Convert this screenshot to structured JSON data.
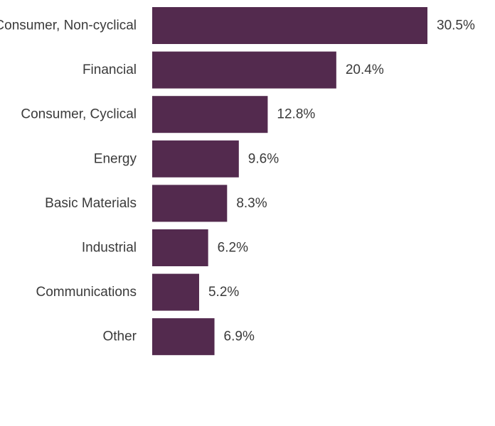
{
  "chart_data": {
    "type": "bar",
    "orientation": "horizontal",
    "categories": [
      "Consumer, Non-cyclical",
      "Financial",
      "Consumer, Cyclical",
      "Energy",
      "Basic Materials",
      "Industrial",
      "Communications",
      "Other"
    ],
    "values": [
      30.5,
      20.4,
      12.8,
      9.6,
      8.3,
      6.2,
      5.2,
      6.9
    ],
    "value_labels": [
      "30.5%",
      "20.4%",
      "12.8%",
      "9.6%",
      "8.3%",
      "6.2%",
      "5.2%",
      "6.9%"
    ],
    "bar_color": "#532a4e",
    "title": "",
    "xlabel": "",
    "ylabel": "",
    "xlim": [
      0,
      30.5
    ],
    "grid": false,
    "legend": "none"
  }
}
